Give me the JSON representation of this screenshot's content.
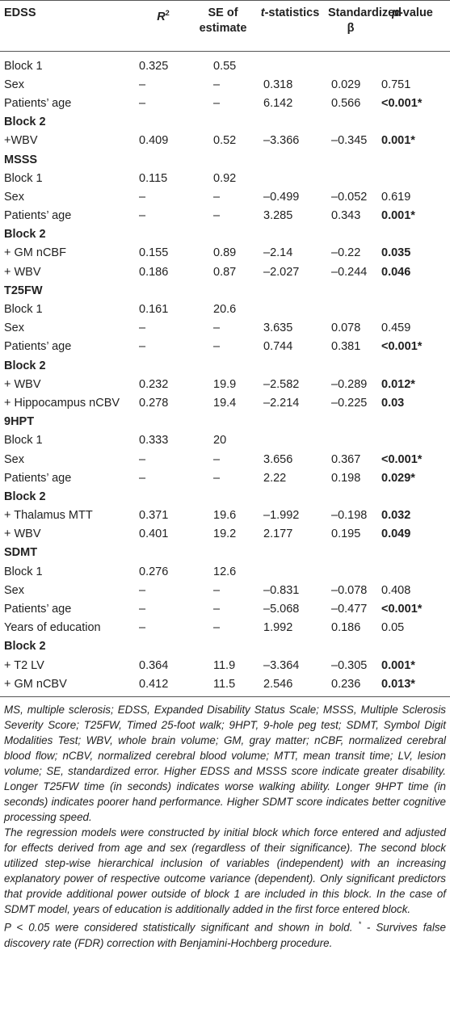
{
  "table": {
    "header": [
      {
        "text": "EDSS"
      },
      {
        "italic": "R",
        "sup": "2"
      },
      {
        "text": "SE of estimate"
      },
      {
        "italic": "t",
        "text": "-statistics"
      },
      {
        "text": "Standardized β"
      },
      {
        "italic": "p",
        "text": "-value"
      }
    ],
    "rows": [
      {
        "cells": [
          "Block 1",
          "0.325",
          "0.55",
          null,
          null,
          null
        ]
      },
      {
        "cells": [
          "Sex",
          "–",
          "–",
          "0.318",
          "0.029",
          "0.751"
        ]
      },
      {
        "cells": [
          "Patients’ age",
          "–",
          "–",
          "6.142",
          "0.566",
          "<0.001*"
        ],
        "bold_p": true
      },
      {
        "cells": [
          "Block 2",
          null,
          null,
          null,
          null,
          null
        ],
        "heading": true
      },
      {
        "cells": [
          "+WBV",
          "0.409",
          "0.52",
          "–3.366",
          "–0.345",
          "0.001*"
        ],
        "bold_p": true
      },
      {
        "cells": [
          "MSSS",
          null,
          null,
          null,
          null,
          null
        ],
        "heading": true
      },
      {
        "cells": [
          "Block 1",
          "0.115",
          "0.92",
          null,
          null,
          null
        ]
      },
      {
        "cells": [
          "Sex",
          "–",
          "–",
          "–0.499",
          "–0.052",
          "0.619"
        ]
      },
      {
        "cells": [
          "Patients’ age",
          "–",
          "–",
          "3.285",
          "0.343",
          "0.001*"
        ],
        "bold_p": true
      },
      {
        "cells": [
          "Block 2",
          null,
          null,
          null,
          null,
          null
        ],
        "heading": true
      },
      {
        "cells": [
          "+ GM nCBF",
          "0.155",
          "0.89",
          "–2.14",
          "–0.22",
          "0.035"
        ],
        "bold_p": true
      },
      {
        "cells": [
          "+ WBV",
          "0.186",
          "0.87",
          "–2.027",
          "–0.244",
          "0.046"
        ],
        "bold_p": true
      },
      {
        "cells": [
          "T25FW",
          null,
          null,
          null,
          null,
          null
        ],
        "heading": true
      },
      {
        "cells": [
          "Block 1",
          "0.161",
          "20.6",
          null,
          null,
          null
        ]
      },
      {
        "cells": [
          "Sex",
          "–",
          "–",
          "3.635",
          "0.078",
          "0.459"
        ]
      },
      {
        "cells": [
          "Patients’ age",
          "–",
          "–",
          "0.744",
          "0.381",
          "<0.001*"
        ],
        "bold_p": true
      },
      {
        "cells": [
          "Block 2",
          null,
          null,
          null,
          null,
          null
        ],
        "heading": true
      },
      {
        "cells": [
          "+ WBV",
          "0.232",
          "19.9",
          "–2.582",
          "–0.289",
          "0.012*"
        ],
        "bold_p": true
      },
      {
        "cells": [
          "+ Hippocampus nCBV",
          "0.278",
          "19.4",
          "–2.214",
          "–0.225",
          "0.03"
        ],
        "bold_p": true
      },
      {
        "cells": [
          "9HPT",
          null,
          null,
          null,
          null,
          null
        ],
        "heading": true
      },
      {
        "cells": [
          "Block 1",
          "0.333",
          "20",
          null,
          null,
          null
        ]
      },
      {
        "cells": [
          "Sex",
          "–",
          "–",
          "3.656",
          "0.367",
          "<0.001*"
        ],
        "bold_p": true
      },
      {
        "cells": [
          "Patients’ age",
          "–",
          "–",
          "2.22",
          "0.198",
          "0.029*"
        ],
        "bold_p": true
      },
      {
        "cells": [
          "Block 2",
          null,
          null,
          null,
          null,
          null
        ],
        "heading": true
      },
      {
        "cells": [
          "+ Thalamus MTT",
          "0.371",
          "19.6",
          "–1.992",
          "–0.198",
          "0.032"
        ],
        "bold_p": true
      },
      {
        "cells": [
          "+ WBV",
          "0.401",
          "19.2",
          "2.177",
          "0.195",
          "0.049"
        ],
        "bold_p": true
      },
      {
        "cells": [
          "SDMT",
          null,
          null,
          null,
          null,
          null
        ],
        "heading": true
      },
      {
        "cells": [
          "Block 1",
          "0.276",
          "12.6",
          null,
          null,
          null
        ]
      },
      {
        "cells": [
          "Sex",
          "–",
          "–",
          "–0.831",
          "–0.078",
          "0.408"
        ]
      },
      {
        "cells": [
          "Patients’ age",
          "–",
          "–",
          "–5.068",
          "–0.477",
          "<0.001*"
        ],
        "bold_p": true
      },
      {
        "cells": [
          "Years of education",
          "–",
          "–",
          "1.992",
          "0.186",
          "0.05"
        ]
      },
      {
        "cells": [
          "Block 2",
          null,
          null,
          null,
          null,
          null
        ],
        "heading": true
      },
      {
        "cells": [
          "+ T2 LV",
          "0.364",
          "11.9",
          "–3.364",
          "–0.305",
          "0.001*"
        ],
        "bold_p": true
      },
      {
        "cells": [
          "+ GM nCBV",
          "0.412",
          "11.5",
          "2.546",
          "0.236",
          "0.013*"
        ],
        "bold_p": true
      }
    ]
  },
  "notes": [
    "MS, multiple sclerosis; EDSS, Expanded Disability Status Scale; MSSS, Multiple Sclerosis Severity Score; T25FW, Timed 25-foot walk; 9HPT, 9-hole peg test; SDMT, Symbol Digit Modalities Test; WBV, whole brain volume; GM, gray matter; nCBF, normalized cerebral blood flow; nCBV, normalized cerebral blood volume; MTT, mean transit time; LV, lesion volume; SE, standardized error. Higher EDSS and MSSS score indicate greater disability. Longer T25FW time (in seconds) indicates worse walking ability. Longer 9HPT time (in seconds) indicates poorer hand performance. Higher SDMT score indicates better cognitive processing speed.",
    "The regression models were constructed by initial block which force entered and adjusted for effects derived from age and sex (regardless of their significance). The second block utilized step-wise hierarchical inclusion of variables (independent) with an increasing explanatory power of respective outcome variance (dependent). Only significant predictors that provide additional power outside of block 1 are included in this block. In the case of SDMT model, years of education is additionally added in the first force entered block.",
    [
      "P",
      " < 0.05 were considered statistically significant and shown in bold. ",
      "*",
      " - Survives false discovery rate (FDR) correction with Benjamini-Hochberg procedure."
    ]
  ]
}
